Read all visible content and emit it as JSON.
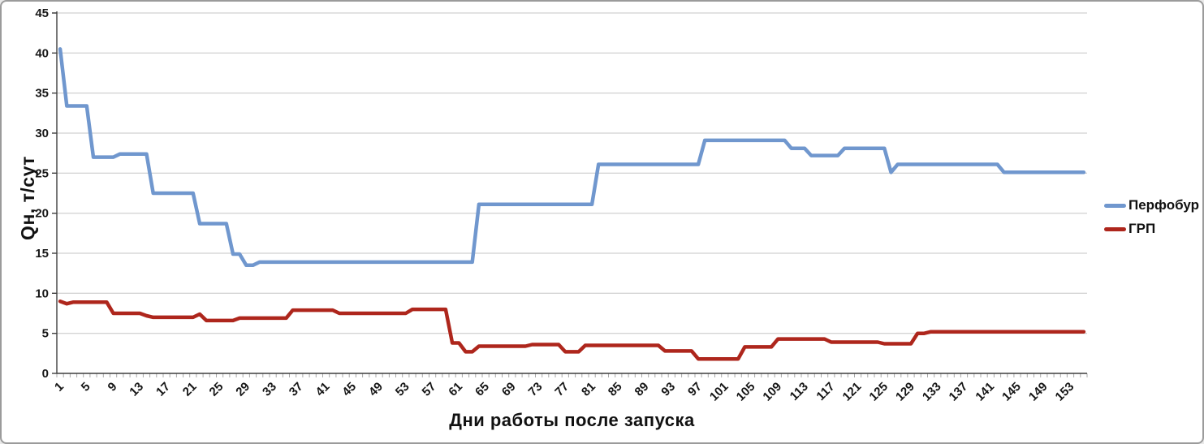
{
  "page": {
    "background": "#ffffff",
    "border_color": "#9b9b9b"
  },
  "axes_style": {
    "gridline_color": "#c6c6c6",
    "axis_color": "#3f3f3f",
    "tick_color": "#a8a8a8",
    "label_color": "#161616"
  },
  "legend": {
    "items": [
      {
        "label": "Перфобур",
        "color": "#7097CE"
      },
      {
        "label": "ГРП",
        "color": "#AE261C"
      }
    ]
  },
  "chart_data": {
    "type": "line",
    "title": "",
    "xlabel": "Дни работы после запуска",
    "ylabel": "Qн, т/сут",
    "legend_position": "right",
    "grid": true,
    "x_axis": {
      "range": [
        1,
        155
      ],
      "minor_tick_interval": 1,
      "tick_labels": [
        1,
        5,
        9,
        13,
        17,
        21,
        25,
        29,
        33,
        37,
        41,
        45,
        49,
        53,
        57,
        61,
        65,
        69,
        73,
        77,
        81,
        85,
        89,
        93,
        97,
        101,
        105,
        109,
        113,
        117,
        121,
        125,
        129,
        133,
        137,
        141,
        145,
        149,
        153
      ]
    },
    "y_axis": {
      "range": [
        0,
        45
      ],
      "tick_labels": [
        0,
        5,
        10,
        15,
        20,
        25,
        30,
        35,
        40,
        45
      ]
    },
    "x_start_day": 1,
    "series": [
      {
        "name": "Перфобур",
        "color": "#7097CE",
        "values": [
          40.5,
          33.4,
          33.4,
          33.4,
          33.4,
          27,
          27,
          27,
          27,
          27.4,
          27.4,
          27.4,
          27.4,
          27.4,
          22.5,
          22.5,
          22.5,
          22.5,
          22.5,
          22.5,
          22.5,
          18.7,
          18.7,
          18.7,
          18.7,
          18.7,
          14.9,
          14.9,
          13.5,
          13.5,
          13.9,
          13.9,
          13.9,
          13.9,
          13.9,
          13.9,
          13.9,
          13.9,
          13.9,
          13.9,
          13.9,
          13.9,
          13.9,
          13.9,
          13.9,
          13.9,
          13.9,
          13.9,
          13.9,
          13.9,
          13.9,
          13.9,
          13.9,
          13.9,
          13.9,
          13.9,
          13.9,
          13.9,
          13.9,
          13.9,
          13.9,
          13.9,
          13.9,
          21.1,
          21.1,
          21.1,
          21.1,
          21.1,
          21.1,
          21.1,
          21.1,
          21.1,
          21.1,
          21.1,
          21.1,
          21.1,
          21.1,
          21.1,
          21.1,
          21.1,
          21.1,
          26.1,
          26.1,
          26.1,
          26.1,
          26.1,
          26.1,
          26.1,
          26.1,
          26.1,
          26.1,
          26.1,
          26.1,
          26.1,
          26.1,
          26.1,
          26.1,
          29.1,
          29.1,
          29.1,
          29.1,
          29.1,
          29.1,
          29.1,
          29.1,
          29.1,
          29.1,
          29.1,
          29.1,
          29.1,
          28.1,
          28.1,
          28.1,
          27.2,
          27.2,
          27.2,
          27.2,
          27.2,
          28.1,
          28.1,
          28.1,
          28.1,
          28.1,
          28.1,
          28.1,
          25.1,
          26.1,
          26.1,
          26.1,
          26.1,
          26.1,
          26.1,
          26.1,
          26.1,
          26.1,
          26.1,
          26.1,
          26.1,
          26.1,
          26.1,
          26.1,
          26.1,
          25.1,
          25.1,
          25.1,
          25.1,
          25.1,
          25.1,
          25.1,
          25.1,
          25.1,
          25.1,
          25.1,
          25.1,
          25.1
        ]
      },
      {
        "name": "ГРП",
        "color": "#AE261C",
        "values": [
          9,
          8.7,
          8.9,
          8.9,
          8.9,
          8.9,
          8.9,
          8.9,
          7.5,
          7.5,
          7.5,
          7.5,
          7.5,
          7.2,
          7,
          7,
          7,
          7,
          7,
          7,
          7,
          7.4,
          6.6,
          6.6,
          6.6,
          6.6,
          6.6,
          6.9,
          6.9,
          6.9,
          6.9,
          6.9,
          6.9,
          6.9,
          6.9,
          7.9,
          7.9,
          7.9,
          7.9,
          7.9,
          7.9,
          7.9,
          7.5,
          7.5,
          7.5,
          7.5,
          7.5,
          7.5,
          7.5,
          7.5,
          7.5,
          7.5,
          7.5,
          8,
          8,
          8,
          8,
          8,
          8,
          3.8,
          3.8,
          2.7,
          2.7,
          3.4,
          3.4,
          3.4,
          3.4,
          3.4,
          3.4,
          3.4,
          3.4,
          3.6,
          3.6,
          3.6,
          3.6,
          3.6,
          2.7,
          2.7,
          2.7,
          3.5,
          3.5,
          3.5,
          3.5,
          3.5,
          3.5,
          3.5,
          3.5,
          3.5,
          3.5,
          3.5,
          3.5,
          2.8,
          2.8,
          2.8,
          2.8,
          2.8,
          1.8,
          1.8,
          1.8,
          1.8,
          1.8,
          1.8,
          1.8,
          3.3,
          3.3,
          3.3,
          3.3,
          3.3,
          4.3,
          4.3,
          4.3,
          4.3,
          4.3,
          4.3,
          4.3,
          4.3,
          3.9,
          3.9,
          3.9,
          3.9,
          3.9,
          3.9,
          3.9,
          3.9,
          3.7,
          3.7,
          3.7,
          3.7,
          3.7,
          5,
          5,
          5.2,
          5.2,
          5.2,
          5.2,
          5.2,
          5.2,
          5.2,
          5.2,
          5.2,
          5.2,
          5.2,
          5.2,
          5.2,
          5.2,
          5.2,
          5.2,
          5.2,
          5.2,
          5.2,
          5.2,
          5.2,
          5.2,
          5.2,
          5.2
        ]
      }
    ]
  }
}
